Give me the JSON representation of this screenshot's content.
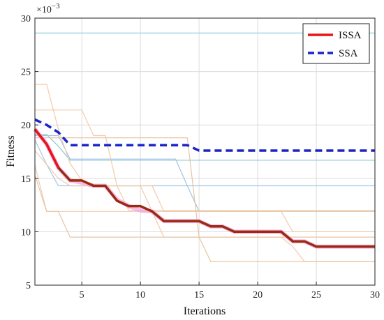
{
  "chart_data": {
    "type": "line",
    "xlabel": "Iterations",
    "ylabel": "Fitness",
    "multiplier_base": "×10",
    "multiplier_exp": "−3",
    "xlim": [
      1,
      30
    ],
    "ylim": [
      5,
      30
    ],
    "xticks": [
      5,
      10,
      15,
      20,
      25,
      30
    ],
    "yticks": [
      5,
      10,
      15,
      20,
      25,
      30
    ],
    "grid": true,
    "legend_position": "top-right",
    "x": [
      1,
      2,
      3,
      4,
      5,
      6,
      7,
      8,
      9,
      10,
      11,
      12,
      13,
      14,
      15,
      16,
      17,
      18,
      19,
      20,
      21,
      22,
      23,
      24,
      25,
      26,
      27,
      28,
      29,
      30
    ],
    "series": [
      {
        "name": "ISSA",
        "color": "#e8141a",
        "style": "solid",
        "values": [
          19.6,
          18.2,
          16.0,
          14.8,
          14.8,
          14.3,
          14.3,
          12.9,
          12.4,
          12.4,
          11.9,
          11.0,
          11.0,
          11.0,
          11.0,
          10.5,
          10.5,
          10.0,
          10.0,
          10.0,
          10.0,
          10.0,
          9.1,
          9.1,
          8.6,
          8.6,
          8.6,
          8.6,
          8.6,
          8.6
        ]
      },
      {
        "name": "SSA",
        "color": "#1a23c8",
        "style": "dashed",
        "values": [
          20.5,
          20.0,
          19.3,
          18.1,
          18.1,
          18.1,
          18.1,
          18.1,
          18.1,
          18.1,
          18.1,
          18.1,
          18.1,
          18.1,
          17.6,
          17.6,
          17.6,
          17.6,
          17.6,
          17.6,
          17.6,
          17.6,
          17.6,
          17.6,
          17.6,
          17.6,
          17.6,
          17.6,
          17.6,
          17.6
        ]
      }
    ],
    "background_runs": [
      {
        "color": "#8ccbe0",
        "values": [
          28.6,
          28.6,
          28.6,
          28.6,
          28.6,
          28.6,
          28.6,
          28.6,
          28.6,
          28.6,
          28.6,
          28.6,
          28.6,
          28.6,
          28.6,
          28.6,
          28.6,
          28.6,
          28.6,
          28.6,
          28.6,
          28.6,
          28.6,
          28.6,
          28.6,
          28.6,
          28.6,
          28.6,
          28.6,
          28.6
        ]
      },
      {
        "color": "#7fc3d0",
        "values": [
          19.1,
          19.1,
          18.0,
          16.7,
          16.7,
          16.7,
          16.7,
          16.7,
          16.7,
          16.7,
          16.7,
          16.7,
          16.7,
          16.7,
          16.7,
          16.7,
          16.7,
          16.7,
          16.7,
          16.7,
          16.7,
          16.7,
          16.7,
          16.7,
          16.7,
          16.7,
          16.7,
          16.7,
          16.7,
          16.7
        ]
      },
      {
        "color": "#9cc5e6",
        "values": [
          18.6,
          16.3,
          14.3,
          14.3,
          14.3,
          14.3,
          14.3,
          14.3,
          14.3,
          14.3,
          14.3,
          14.3,
          14.3,
          14.3,
          14.3,
          14.3,
          14.3,
          14.3,
          14.3,
          14.3,
          14.3,
          14.3,
          14.3,
          14.3,
          14.3,
          14.3,
          14.3,
          14.3,
          14.3,
          14.3
        ]
      },
      {
        "color": "#9cbfe6",
        "values": [
          19.0,
          19.0,
          19.0,
          16.8,
          16.8,
          16.8,
          16.8,
          16.8,
          16.8,
          16.8,
          16.8,
          16.8,
          16.8,
          14.3,
          11.9,
          11.9,
          11.9,
          11.9,
          11.9,
          11.9,
          11.9,
          11.9,
          11.9,
          11.9,
          11.9,
          11.9,
          11.9,
          11.9,
          11.9,
          11.9
        ]
      },
      {
        "color": "#f0c8a8",
        "values": [
          23.8,
          23.8,
          19.6,
          16.4,
          14.8,
          14.3,
          14.3,
          14.3,
          12.0,
          12.0,
          12.0,
          12.0,
          12.0,
          12.0,
          12.0,
          12.0,
          12.0,
          12.0,
          12.0,
          12.0,
          12.0,
          12.0,
          12.0,
          12.0,
          12.0,
          12.0,
          12.0,
          12.0,
          12.0,
          12.0
        ]
      },
      {
        "color": "#f0c8a8",
        "values": [
          21.4,
          21.4,
          21.4,
          21.4,
          21.4,
          19.0,
          19.0,
          14.3,
          14.3,
          14.3,
          14.3,
          11.9,
          11.9,
          11.9,
          11.9,
          11.9,
          11.9,
          11.9,
          11.9,
          11.9,
          11.9,
          11.9,
          10.0,
          10.0,
          10.0,
          10.0,
          10.0,
          10.0,
          10.0,
          10.0
        ]
      },
      {
        "color": "#f0c8a8",
        "values": [
          17.6,
          16.3,
          15.0,
          14.3,
          14.3,
          14.3,
          14.3,
          14.3,
          14.3,
          14.3,
          11.9,
          9.5,
          9.5,
          9.5,
          9.5,
          9.5,
          9.5,
          9.5,
          9.5,
          9.5,
          9.5,
          9.5,
          8.6,
          7.2,
          7.2,
          7.2,
          7.2,
          7.2,
          7.2,
          7.2
        ]
      },
      {
        "color": "#f0c8a8",
        "values": [
          16.2,
          11.9,
          11.9,
          11.9,
          11.9,
          11.9,
          11.9,
          11.9,
          11.9,
          11.9,
          11.9,
          11.9,
          11.9,
          11.9,
          11.9,
          11.9,
          11.9,
          11.9,
          11.9,
          11.9,
          11.9,
          11.9,
          11.9,
          11.9,
          11.9,
          11.9,
          11.9,
          11.9,
          11.9,
          11.9
        ]
      },
      {
        "color": "#e8c0a0",
        "values": [
          15.3,
          11.9,
          11.9,
          9.5,
          9.5,
          9.5,
          9.5,
          9.5,
          9.5,
          9.5,
          9.5,
          9.5,
          9.5,
          9.5,
          9.5,
          9.5,
          9.5,
          9.5,
          9.5,
          9.5,
          9.5,
          9.5,
          9.5,
          9.5,
          9.5,
          9.5,
          9.5,
          9.5,
          9.5,
          9.5
        ]
      },
      {
        "color": "#e6c29e",
        "values": [
          18.8,
          18.8,
          18.8,
          18.8,
          18.8,
          18.8,
          18.8,
          18.8,
          18.8,
          18.8,
          18.8,
          18.8,
          18.8,
          18.8,
          9.5,
          7.2,
          7.2,
          7.2,
          7.2,
          7.2,
          7.2,
          7.2,
          7.2,
          7.2,
          7.2,
          7.2,
          7.2,
          7.2,
          7.2,
          7.2
        ]
      },
      {
        "color": "#f4a6e0",
        "values": [
          19.6,
          18.2,
          16.0,
          14.8,
          14.6,
          14.3,
          14.3,
          13.0,
          12.4,
          12.0,
          11.9,
          11.0,
          11.0,
          11.0,
          11.0,
          10.5,
          10.5,
          10.0,
          10.0,
          10.0,
          10.0,
          10.0,
          9.1,
          9.1,
          8.6,
          8.6,
          8.6,
          8.6,
          8.6,
          8.6
        ]
      }
    ]
  }
}
